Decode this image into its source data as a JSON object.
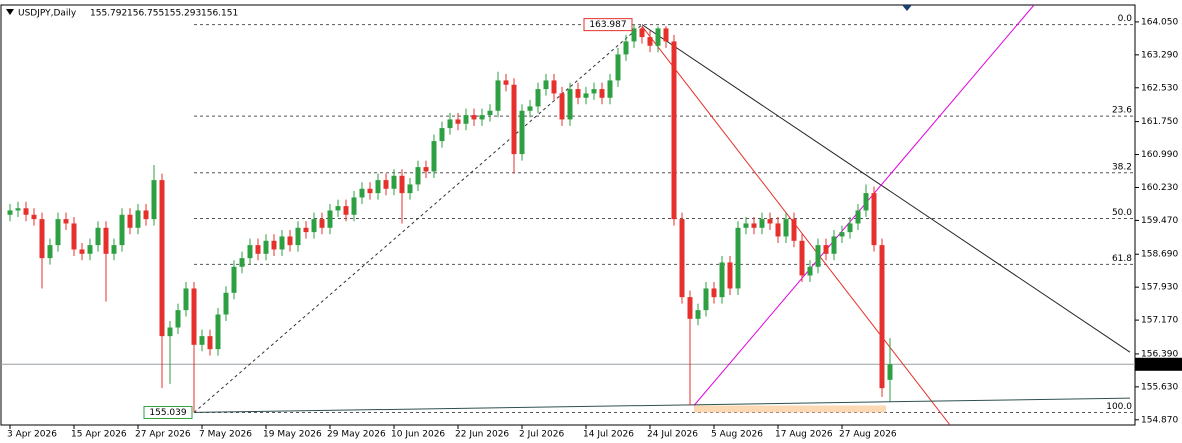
{
  "chart_data": {
    "type": "candlestick",
    "header": {
      "symbol": "USDJPY,Daily"
    },
    "categories": [
      "3 Apr 2026",
      null,
      null,
      null,
      null,
      null,
      null,
      null,
      "15 Apr 2026",
      null,
      null,
      null,
      null,
      null,
      null,
      null,
      "27 Apr 2026",
      null,
      null,
      null,
      null,
      null,
      null,
      null,
      "7 May 2026",
      null,
      null,
      null,
      null,
      null,
      null,
      null,
      "19 May 2026",
      null,
      null,
      null,
      null,
      null,
      null,
      null,
      "29 May 2026",
      null,
      null,
      null,
      null,
      null,
      null,
      null,
      "10 Jun 2026",
      null,
      null,
      null,
      null,
      null,
      null,
      null,
      "22 Jun 2026",
      null,
      null,
      null,
      null,
      null,
      null,
      null,
      "2 Jul 2026",
      null,
      null,
      null,
      null,
      null,
      null,
      null,
      "14 Jul 2026",
      null,
      null,
      null,
      null,
      null,
      null,
      null,
      "24 Jul 2026",
      null,
      null,
      null,
      null,
      null,
      null,
      null,
      "5 Aug 2026",
      null,
      null,
      null,
      null,
      null,
      null,
      null,
      "17 Aug 2026",
      null,
      null,
      null,
      null,
      null,
      null,
      null,
      "27 Aug 2026",
      null,
      null,
      null,
      null,
      null,
      null
    ],
    "series": [
      {
        "name": "USDJPY",
        "up_color": "#2ea043",
        "down_color": "#e5302c",
        "open": [
          159.6,
          159.7,
          159.75,
          159.6,
          159.5,
          158.6,
          158.9,
          159.5,
          159.4,
          158.8,
          158.7,
          158.9,
          159.3,
          158.7,
          158.9,
          159.6,
          159.3,
          159.7,
          159.5,
          160.4,
          156.8,
          157.0,
          157.4,
          157.9,
          156.6,
          156.8,
          156.5,
          157.3,
          157.8,
          158.4,
          158.6,
          158.9,
          158.7,
          159.0,
          158.8,
          159.1,
          158.9,
          159.3,
          159.2,
          159.5,
          159.3,
          159.7,
          159.8,
          159.6,
          160.0,
          160.2,
          160.1,
          160.4,
          160.2,
          160.5,
          160.1,
          160.3,
          160.7,
          160.6,
          161.3,
          161.6,
          161.8,
          161.7,
          161.9,
          161.8,
          161.9,
          162.0,
          162.7,
          162.6,
          161.0,
          162.0,
          162.1,
          162.5,
          162.7,
          162.4,
          161.8,
          162.5,
          162.3,
          162.4,
          162.5,
          162.3,
          162.7,
          163.3,
          163.6,
          163.9,
          163.7,
          163.5,
          163.9,
          163.6,
          159.5,
          157.7,
          157.2,
          157.4,
          157.9,
          157.7,
          158.5,
          157.9,
          159.3,
          159.4,
          159.3,
          159.5,
          159.4,
          159.1,
          159.5,
          159.0,
          158.2,
          158.4,
          158.9,
          158.7,
          159.1,
          159.2,
          159.4,
          159.7,
          160.1,
          158.9,
          155.792
        ],
        "high": [
          159.85,
          159.9,
          159.9,
          159.75,
          159.65,
          159.05,
          159.65,
          159.65,
          159.55,
          158.95,
          159.05,
          159.45,
          159.45,
          159.05,
          159.75,
          159.75,
          159.85,
          159.85,
          160.75,
          160.55,
          157.15,
          157.55,
          158.05,
          158.05,
          156.95,
          156.95,
          157.45,
          157.95,
          158.55,
          158.75,
          159.05,
          159.05,
          159.15,
          159.15,
          159.25,
          159.25,
          159.45,
          159.45,
          159.65,
          159.65,
          159.85,
          159.95,
          159.95,
          160.15,
          160.35,
          160.35,
          160.55,
          160.55,
          160.65,
          160.65,
          160.45,
          160.85,
          160.85,
          161.45,
          161.75,
          161.95,
          161.95,
          162.05,
          162.05,
          162.05,
          162.15,
          162.9,
          162.85,
          162.75,
          162.15,
          162.25,
          162.65,
          162.85,
          162.85,
          162.55,
          162.65,
          162.65,
          162.55,
          162.65,
          162.65,
          162.85,
          163.45,
          163.75,
          163.987,
          163.95,
          163.85,
          163.95,
          163.95,
          163.75,
          159.65,
          157.85,
          157.55,
          158.05,
          158.05,
          158.65,
          158.65,
          159.45,
          159.55,
          159.55,
          159.65,
          159.65,
          159.55,
          159.65,
          159.65,
          159.15,
          158.55,
          159.05,
          159.05,
          159.25,
          159.35,
          159.55,
          159.85,
          160.3,
          160.25,
          159.05,
          156.755
        ],
        "low": [
          159.45,
          159.55,
          159.45,
          159.35,
          157.9,
          158.45,
          158.75,
          159.25,
          158.65,
          158.55,
          158.55,
          158.75,
          157.6,
          158.55,
          158.75,
          159.15,
          159.15,
          159.35,
          159.35,
          155.6,
          155.7,
          156.85,
          157.25,
          155.039,
          156.45,
          156.35,
          156.35,
          157.15,
          157.65,
          158.25,
          158.45,
          158.55,
          158.55,
          158.65,
          158.65,
          158.75,
          158.75,
          159.05,
          159.05,
          159.15,
          159.15,
          159.55,
          159.45,
          159.45,
          159.85,
          159.95,
          159.95,
          160.05,
          160.05,
          159.4,
          159.95,
          160.15,
          160.45,
          160.45,
          161.15,
          161.45,
          161.55,
          161.55,
          161.65,
          161.65,
          161.75,
          161.85,
          162.45,
          160.55,
          160.85,
          161.85,
          161.95,
          162.35,
          162.25,
          161.65,
          161.65,
          162.15,
          162.15,
          162.25,
          162.15,
          162.15,
          162.55,
          163.15,
          163.45,
          163.55,
          163.35,
          163.35,
          163.45,
          159.35,
          157.55,
          155.2,
          157.05,
          157.25,
          157.55,
          157.55,
          157.75,
          157.75,
          159.15,
          159.15,
          159.15,
          159.25,
          158.95,
          158.95,
          158.85,
          158.05,
          158.05,
          158.25,
          158.55,
          158.55,
          158.95,
          159.05,
          159.25,
          159.55,
          158.75,
          155.4,
          155.293
        ],
        "close": [
          159.7,
          159.75,
          159.6,
          159.5,
          158.6,
          158.9,
          159.5,
          159.4,
          158.8,
          158.7,
          158.9,
          159.3,
          158.7,
          158.9,
          159.6,
          159.3,
          159.7,
          159.5,
          160.4,
          156.8,
          157.0,
          157.4,
          157.9,
          156.6,
          156.8,
          156.5,
          157.3,
          157.8,
          158.4,
          158.6,
          158.9,
          158.7,
          159.0,
          158.8,
          159.1,
          158.9,
          159.3,
          159.2,
          159.5,
          159.3,
          159.7,
          159.8,
          159.6,
          160.0,
          160.2,
          160.1,
          160.4,
          160.2,
          160.5,
          160.1,
          160.3,
          160.7,
          160.6,
          161.3,
          161.6,
          161.8,
          161.7,
          161.9,
          161.8,
          161.9,
          162.0,
          162.7,
          162.6,
          161.0,
          162.0,
          162.1,
          162.5,
          162.7,
          162.4,
          161.8,
          162.5,
          162.3,
          162.4,
          162.5,
          162.3,
          162.7,
          163.3,
          163.6,
          163.9,
          163.7,
          163.5,
          163.9,
          163.6,
          159.5,
          157.7,
          157.2,
          157.4,
          157.9,
          157.7,
          158.5,
          157.9,
          159.3,
          159.4,
          159.3,
          159.5,
          159.4,
          159.1,
          159.5,
          159.0,
          158.2,
          158.4,
          158.9,
          158.7,
          159.1,
          159.2,
          159.4,
          159.7,
          160.1,
          158.9,
          155.6,
          156.151
        ]
      }
    ],
    "ylim": [
      154.75,
      164.44
    ],
    "yticks": [
      {
        "value": 164.05,
        "label": "164.050"
      },
      {
        "value": 163.29,
        "label": "163.290"
      },
      {
        "value": 162.53,
        "label": "162.530"
      },
      {
        "value": 161.75,
        "label": "161.750"
      },
      {
        "value": 160.99,
        "label": "160.990"
      },
      {
        "value": 160.23,
        "label": "160.230"
      },
      {
        "value": 159.47,
        "label": "159.470"
      },
      {
        "value": 158.69,
        "label": "158.690"
      },
      {
        "value": 157.93,
        "label": "157.930"
      },
      {
        "value": 157.17,
        "label": "157.170"
      },
      {
        "value": 156.39,
        "label": "156.390"
      },
      {
        "value": 155.63,
        "label": "155.630"
      },
      {
        "value": 154.87,
        "label": "154.870"
      }
    ],
    "fibo": {
      "start": 23,
      "color": "#555555",
      "levels": [
        {
          "label": "0.0",
          "price": 163.987
        },
        {
          "label": "23.6",
          "price": 161.875
        },
        {
          "label": "38.2",
          "price": 160.569
        },
        {
          "label": "50.0",
          "price": 159.513
        },
        {
          "label": "61.8",
          "price": 158.457
        },
        {
          "label": "100.0",
          "price": 155.039
        }
      ]
    },
    "trendlines": [
      {
        "x": [
          23,
          79
        ],
        "y": [
          155.039,
          163.987
        ],
        "color": "#333333",
        "dashed": true
      },
      {
        "x": [
          79,
          140
        ],
        "y": [
          163.987,
          156.43
        ],
        "color": "#222222",
        "dashed": false
      },
      {
        "x": [
          79,
          117.5
        ],
        "y": [
          163.95,
          154.75
        ],
        "color": "#e5302c",
        "dashed": false
      },
      {
        "x": [
          85.5,
          128
        ],
        "y": [
          155.2,
          164.44
        ],
        "color": "#e000e0",
        "dashed": false
      },
      {
        "x": [
          23,
          140
        ],
        "y": [
          155.04,
          155.37
        ],
        "color": "#2f4f4f",
        "dashed": false
      }
    ],
    "zone": {
      "x": [
        85.5,
        109.5
      ],
      "y": [
        155.2,
        155.04
      ],
      "color": "#fcd9b4"
    }
  }
}
